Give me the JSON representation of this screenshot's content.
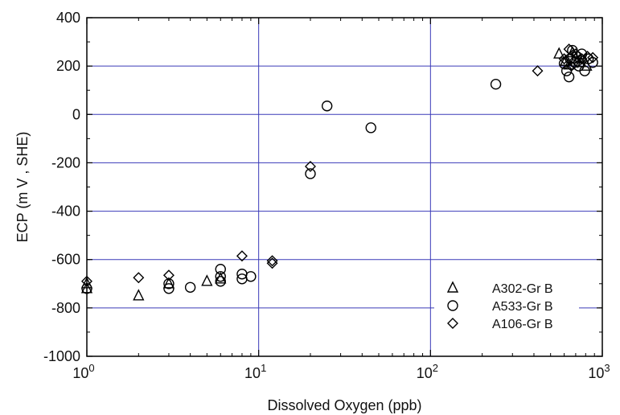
{
  "chart_data": {
    "type": "scatter",
    "title": "",
    "xlabel": "Dissolved Oxygen (ppb)",
    "ylabel": "ECP (m V , SHE)",
    "x_scale": "log",
    "xlim": [
      1,
      1000
    ],
    "ylim": [
      -1000,
      400
    ],
    "x_ticks": [
      {
        "value": 1,
        "label": "10",
        "exp": "0"
      },
      {
        "value": 10,
        "label": "10",
        "exp": "1"
      },
      {
        "value": 100,
        "label": "10",
        "exp": "2"
      },
      {
        "value": 1000,
        "label": "10",
        "exp": "3"
      }
    ],
    "y_ticks": [
      400,
      200,
      0,
      -200,
      -400,
      -600,
      -800,
      -1000
    ],
    "grid": true,
    "grid_color": "#3a3ab8",
    "legend_position": "bottom-right",
    "series": [
      {
        "name": "A302-Gr B",
        "marker": "triangle",
        "points": [
          {
            "x": 1,
            "y": -700
          },
          {
            "x": 1,
            "y": -720
          },
          {
            "x": 2,
            "y": -750
          },
          {
            "x": 3,
            "y": -700
          },
          {
            "x": 5,
            "y": -690
          },
          {
            "x": 6,
            "y": -680
          },
          {
            "x": 560,
            "y": 250
          },
          {
            "x": 610,
            "y": 220
          },
          {
            "x": 640,
            "y": 205
          },
          {
            "x": 670,
            "y": 255
          },
          {
            "x": 700,
            "y": 230
          },
          {
            "x": 750,
            "y": 215
          },
          {
            "x": 810,
            "y": 200
          }
        ]
      },
      {
        "name": "A533-Gr B",
        "marker": "circle",
        "points": [
          {
            "x": 1,
            "y": -720
          },
          {
            "x": 3,
            "y": -720
          },
          {
            "x": 3,
            "y": -700
          },
          {
            "x": 4,
            "y": -715
          },
          {
            "x": 6,
            "y": -690
          },
          {
            "x": 6,
            "y": -670
          },
          {
            "x": 6,
            "y": -640
          },
          {
            "x": 8,
            "y": -680
          },
          {
            "x": 8,
            "y": -660
          },
          {
            "x": 9,
            "y": -670
          },
          {
            "x": 20,
            "y": -245
          },
          {
            "x": 25,
            "y": 35
          },
          {
            "x": 45,
            "y": -55
          },
          {
            "x": 240,
            "y": 125
          },
          {
            "x": 600,
            "y": 210
          },
          {
            "x": 620,
            "y": 180
          },
          {
            "x": 640,
            "y": 155
          },
          {
            "x": 650,
            "y": 230
          },
          {
            "x": 670,
            "y": 265
          },
          {
            "x": 690,
            "y": 215
          },
          {
            "x": 710,
            "y": 240
          },
          {
            "x": 730,
            "y": 200
          },
          {
            "x": 760,
            "y": 250
          },
          {
            "x": 790,
            "y": 180
          },
          {
            "x": 830,
            "y": 230
          },
          {
            "x": 880,
            "y": 215
          }
        ]
      },
      {
        "name": "A106-Gr B",
        "marker": "diamond",
        "points": [
          {
            "x": 1,
            "y": -690
          },
          {
            "x": 2,
            "y": -675
          },
          {
            "x": 3,
            "y": -665
          },
          {
            "x": 8,
            "y": -585
          },
          {
            "x": 12,
            "y": -605
          },
          {
            "x": 12,
            "y": -615
          },
          {
            "x": 20,
            "y": -215
          },
          {
            "x": 420,
            "y": 180
          },
          {
            "x": 600,
            "y": 230
          },
          {
            "x": 640,
            "y": 270
          },
          {
            "x": 660,
            "y": 200
          },
          {
            "x": 700,
            "y": 250
          },
          {
            "x": 720,
            "y": 215
          },
          {
            "x": 760,
            "y": 230
          },
          {
            "x": 820,
            "y": 240
          },
          {
            "x": 880,
            "y": 235
          }
        ]
      }
    ]
  }
}
